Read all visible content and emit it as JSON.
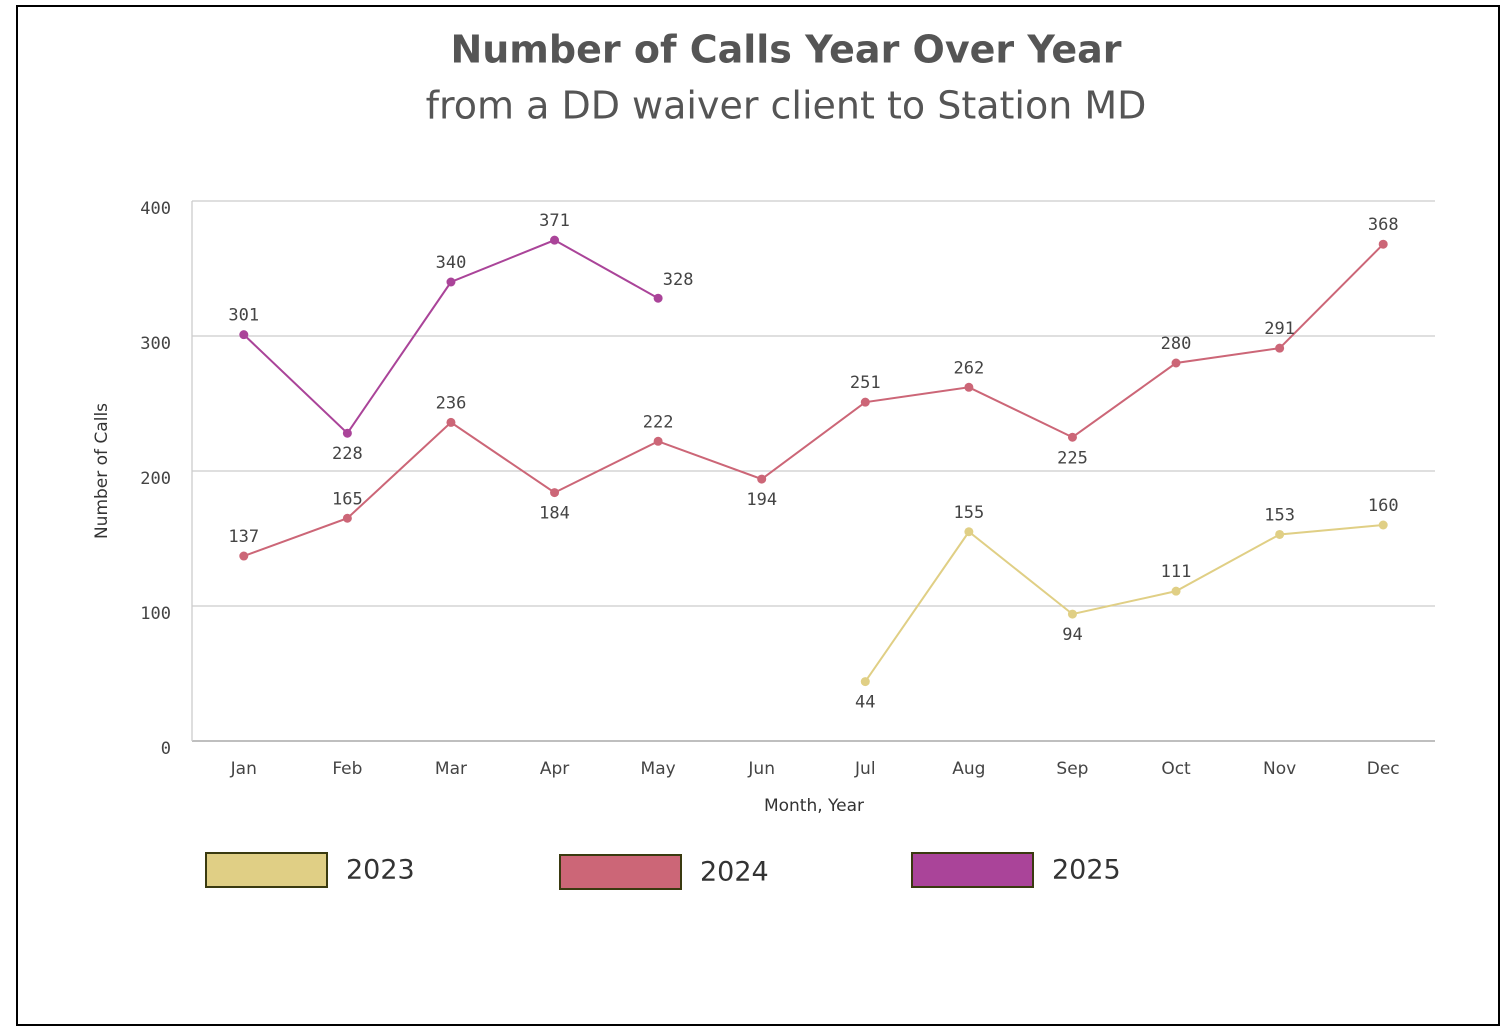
{
  "chart_data": {
    "type": "line",
    "title": "Number of Calls Year Over Year",
    "subtitle": "from a DD waiver client to Station MD",
    "x_label": "Month, Year",
    "y_label": "Number of Calls",
    "categories": [
      "Jan",
      "Feb",
      "Mar",
      "Apr",
      "May",
      "Jun",
      "Jul",
      "Aug",
      "Sep",
      "Oct",
      "Nov",
      "Dec"
    ],
    "series": [
      {
        "name": "2023",
        "color": "#e0cf85",
        "values": [
          null,
          null,
          null,
          null,
          null,
          null,
          44,
          155,
          94,
          111,
          153,
          160
        ]
      },
      {
        "name": "2024",
        "color": "#cc6677",
        "values": [
          137,
          165,
          236,
          184,
          222,
          194,
          251,
          262,
          225,
          280,
          291,
          368
        ]
      },
      {
        "name": "2025",
        "color": "#aa4499",
        "values": [
          301,
          228,
          340,
          371,
          328,
          null,
          null,
          null,
          null,
          null,
          null,
          null
        ]
      }
    ],
    "ylim": [
      0,
      400
    ],
    "yticks": [
      0,
      100,
      200,
      300,
      400
    ],
    "grid": true
  }
}
